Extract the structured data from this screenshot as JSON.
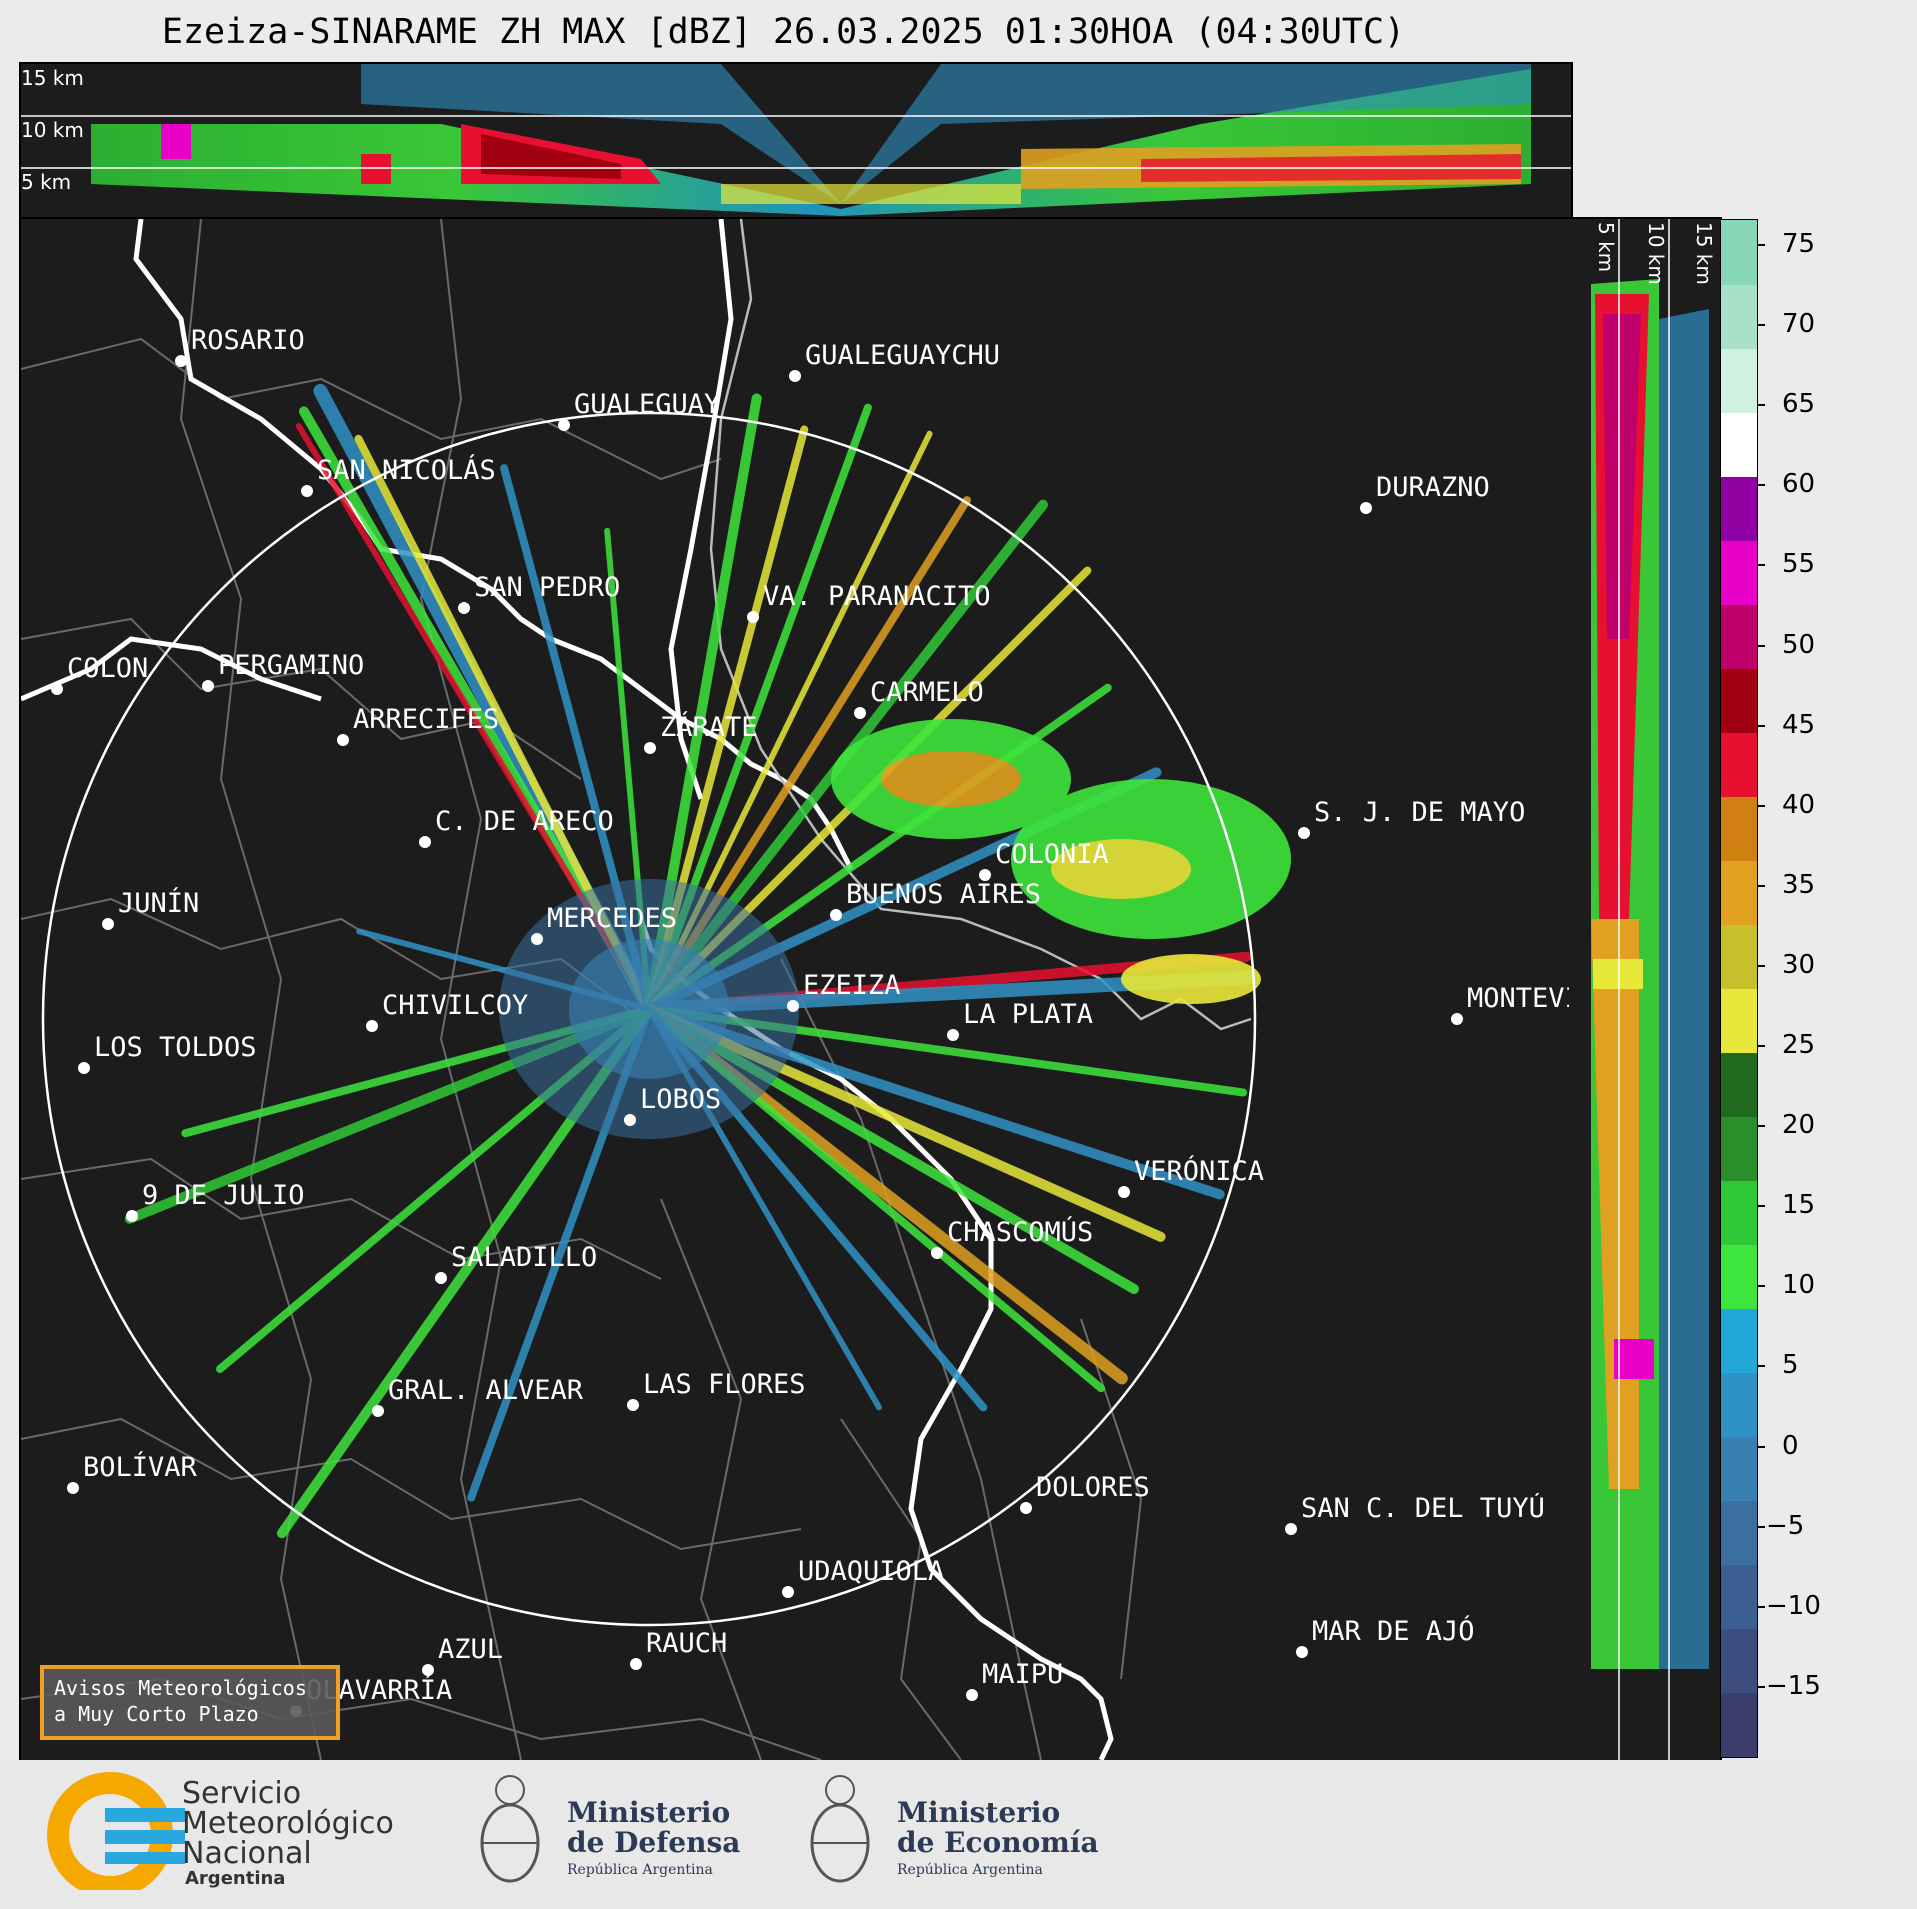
{
  "title": "Ezeiza-SINARAME ZH MAX [dBZ] 26.03.2025 01:30HOA (04:30UTC)",
  "altitude_labels": [
    "15 km",
    "10 km",
    "5 km"
  ],
  "colorbar": {
    "ticks": [
      "75",
      "70",
      "65",
      "60",
      "55",
      "50",
      "45",
      "40",
      "35",
      "30",
      "25",
      "20",
      "15",
      "10",
      "5",
      "0",
      "−5",
      "−10",
      "−15"
    ],
    "colors": [
      "#3b3d6a",
      "#3e4d80",
      "#3c5f91",
      "#3a6fa0",
      "#3780b0",
      "#2f92c4",
      "#21a7d8",
      "#3ee53c",
      "#2fc836",
      "#2a8f2a",
      "#1f6a1f",
      "#e8e83a",
      "#c8c02a",
      "#e0a020",
      "#d08010",
      "#e81030",
      "#a00010",
      "#c0006a",
      "#e800c8",
      "#9000a0",
      "#ffffff",
      "#d0f0e0",
      "#a8e0c8",
      "#88d8b8"
    ]
  },
  "cities": [
    {
      "name": "ROSARIO"
    },
    {
      "name": "GUALEGUAYCHU"
    },
    {
      "name": "GUALEGUAY"
    },
    {
      "name": "SAN NICOLÁS"
    },
    {
      "name": "DURAZNO"
    },
    {
      "name": "SAN PEDRO"
    },
    {
      "name": "VA. PARANACITO"
    },
    {
      "name": "COLON"
    },
    {
      "name": "PERGAMINO"
    },
    {
      "name": "CARMELO"
    },
    {
      "name": "ARRECIFES"
    },
    {
      "name": "ZÁRATE"
    },
    {
      "name": "S. J. DE MAYO"
    },
    {
      "name": "C. DE ARECO"
    },
    {
      "name": "COLONIA"
    },
    {
      "name": "JUNÍN"
    },
    {
      "name": "BUENOS AIRES"
    },
    {
      "name": "MERCEDES"
    },
    {
      "name": "EZEIZA"
    },
    {
      "name": "MONTEVIDEO"
    },
    {
      "name": "CHIVILCOY"
    },
    {
      "name": "LA PLATA"
    },
    {
      "name": "LOS TOLDOS"
    },
    {
      "name": "LOBOS"
    },
    {
      "name": "VERÓNICA"
    },
    {
      "name": "9 DE JULIO"
    },
    {
      "name": "CHASCOMÚS"
    },
    {
      "name": "SALADILLO"
    },
    {
      "name": "GRAL. ALVEAR"
    },
    {
      "name": "LAS FLORES"
    },
    {
      "name": "BOLÍVAR"
    },
    {
      "name": "DOLORES"
    },
    {
      "name": "SAN C. DEL TUYÚ"
    },
    {
      "name": "UDAQUIOLA"
    },
    {
      "name": "MAR DE AJÓ"
    },
    {
      "name": "RAUCH"
    },
    {
      "name": "AZUL"
    },
    {
      "name": "OLAVARRÍA"
    },
    {
      "name": "MAIPU"
    }
  ],
  "notice": {
    "line1": "Avisos Meteorológicos",
    "line2": "a Muy Corto Plazo"
  },
  "footer": {
    "smn": {
      "line1": "Servicio",
      "line2": "Meteorológico",
      "line3": "Nacional",
      "line4": "Argentina"
    },
    "defensa": {
      "line1": "Ministerio",
      "line2": "de Defensa",
      "sub": "República Argentina"
    },
    "economia": {
      "line1": "Ministerio",
      "line2": "de Economía",
      "sub": "República Argentina"
    }
  }
}
